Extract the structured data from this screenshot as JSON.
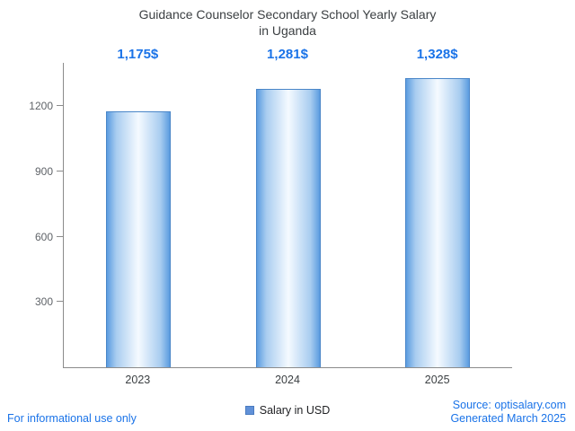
{
  "title": {
    "line1": "Guidance Counselor Secondary School Yearly Salary",
    "line2": "in Uganda"
  },
  "chart_data": {
    "type": "bar",
    "title": "Guidance Counselor Secondary School Yearly Salary in Uganda",
    "categories": [
      "2023",
      "2024",
      "2025"
    ],
    "values": [
      1175,
      1281,
      1328
    ],
    "value_labels": [
      "1,175$",
      "1,281$",
      "1,328$"
    ],
    "series_name": "Salary in USD",
    "yticks": [
      300,
      600,
      900,
      1200
    ],
    "ylim": [
      0,
      1400
    ],
    "xlabel": "",
    "ylabel": "",
    "grid": false,
    "legend_position": "bottom"
  },
  "legend": {
    "label": "Salary in USD"
  },
  "footer": {
    "left": "For informational use only",
    "source": "Source: optisalary.com",
    "generated": "Generated March 2025"
  },
  "colors": {
    "accent_blue": "#1a73e8",
    "bar_edge": "#5b9ce0",
    "bar_center": "#f5faff",
    "bar_border": "#4a86c8",
    "axis": "#8b8b8b",
    "tick_text": "#5f6368",
    "title_text": "#3c4043"
  }
}
